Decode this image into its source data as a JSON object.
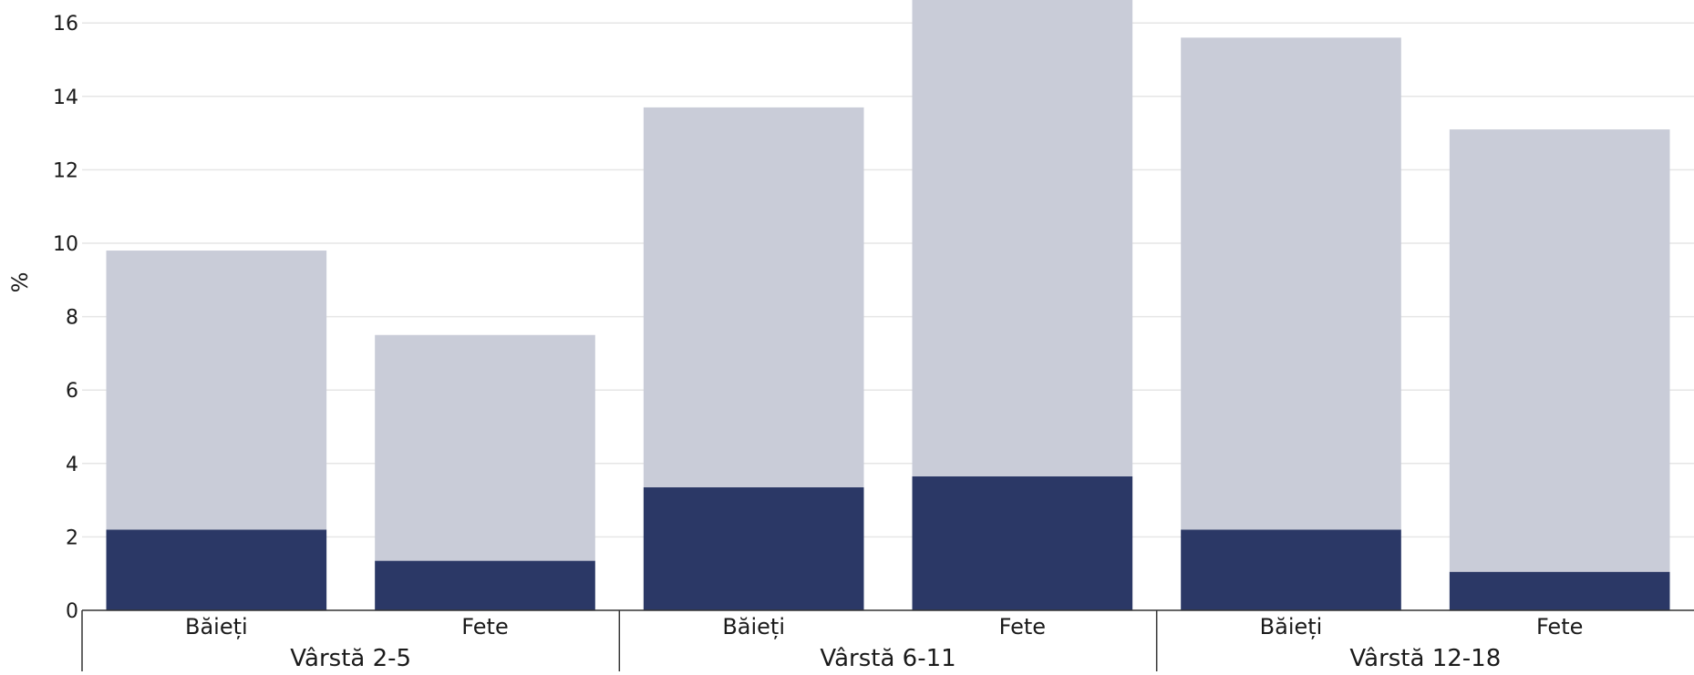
{
  "chart_data": {
    "type": "bar",
    "stacked": true,
    "categories": [
      "Băieți",
      "Fete",
      "Băieți",
      "Fete",
      "Băieți",
      "Fete"
    ],
    "groups": [
      {
        "label": "Vârstă 2-5",
        "categories": [
          0,
          1
        ]
      },
      {
        "label": "Vârstă 6-11",
        "categories": [
          2,
          3
        ]
      },
      {
        "label": "Vârstă 12-18",
        "categories": [
          4,
          5
        ]
      }
    ],
    "series": [
      {
        "values": [
          2.2,
          1.35,
          3.35,
          3.65,
          2.2,
          1.05
        ],
        "color": "#2b3866"
      },
      {
        "values": [
          7.6,
          6.15,
          10.35,
          13.3,
          13.4,
          12.05
        ],
        "color": "#c9ccd8"
      }
    ],
    "ylabel": "%",
    "ylim": [
      0,
      16.6
    ],
    "yticks": [
      0,
      2,
      4,
      6,
      8,
      10,
      12,
      14,
      16
    ],
    "grid": true
  }
}
